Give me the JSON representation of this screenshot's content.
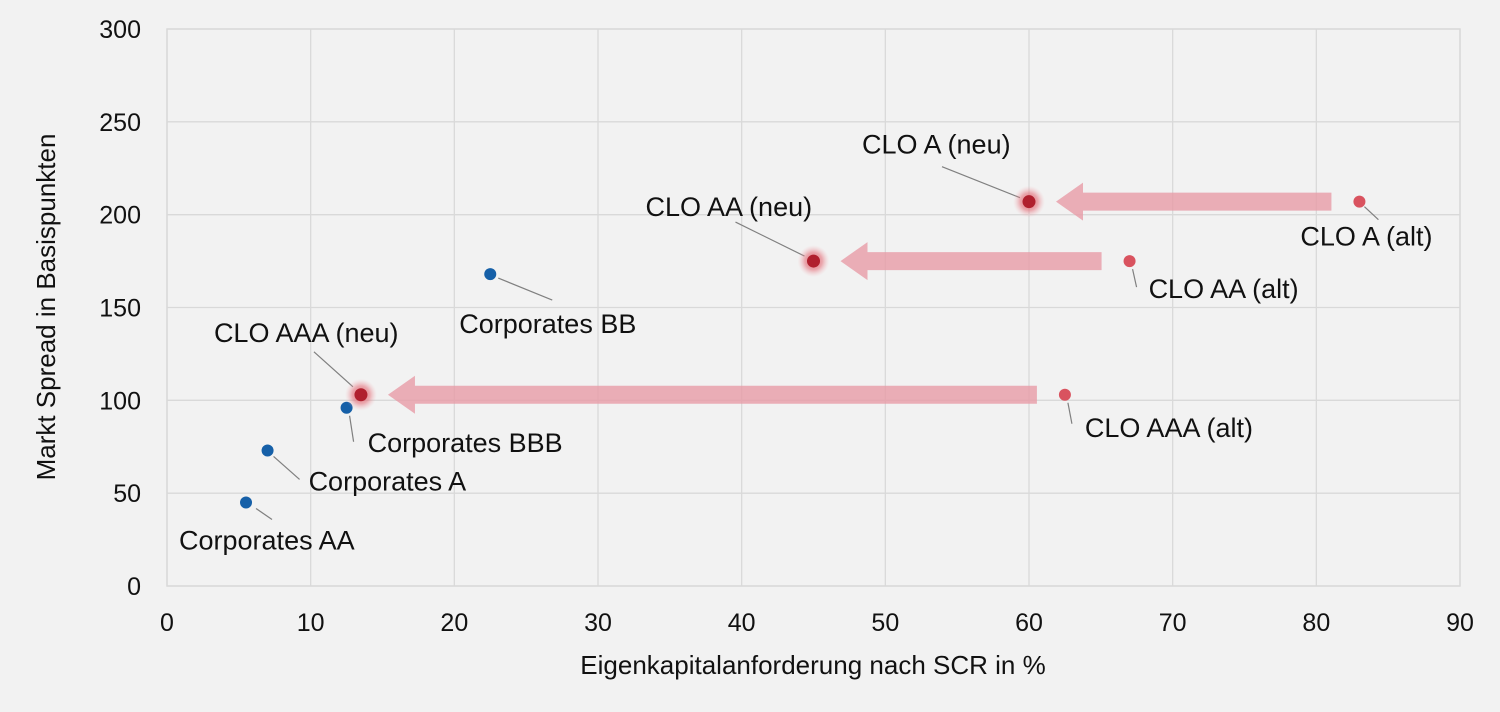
{
  "chart_data": {
    "type": "scatter",
    "title": "",
    "xlabel": "Eigenkapitalanforderung nach SCR in %",
    "ylabel": "Markt Spread in Basispunkten",
    "xlim": [
      0,
      90
    ],
    "ylim": [
      0,
      300
    ],
    "x_ticks": [
      "0",
      "10",
      "20",
      "30",
      "40",
      "50",
      "60",
      "70",
      "80",
      "90"
    ],
    "y_ticks": [
      "0",
      "50",
      "100",
      "150",
      "200",
      "250",
      "300"
    ],
    "grid": true,
    "legend": "none",
    "colors": {
      "corporates": "#1660a8",
      "clo_alt": "#d9535f",
      "clo_neu": "#b0202e",
      "arrow": "#e89aa5",
      "grid": "#d9d9d9"
    },
    "series": [
      {
        "group": "corporates",
        "points": [
          {
            "label": "Corporates AA",
            "x": 5.5,
            "y": 45
          },
          {
            "label": "Corporates A",
            "x": 7.0,
            "y": 73
          },
          {
            "label": "Corporates BBB",
            "x": 12.5,
            "y": 96
          },
          {
            "label": "Corporates BB",
            "x": 22.5,
            "y": 168
          }
        ]
      },
      {
        "group": "clo_alt",
        "points": [
          {
            "label": "CLO AAA (alt)",
            "x": 62.5,
            "y": 103
          },
          {
            "label": "CLO AA (alt)",
            "x": 67.0,
            "y": 175
          },
          {
            "label": "CLO A (alt)",
            "x": 83.0,
            "y": 207
          }
        ]
      },
      {
        "group": "clo_neu",
        "points": [
          {
            "label": "CLO AAA (neu)",
            "x": 13.5,
            "y": 103
          },
          {
            "label": "CLO AA (neu)",
            "x": 45.0,
            "y": 175
          },
          {
            "label": "CLO A (neu)",
            "x": 60.0,
            "y": 207
          }
        ]
      }
    ],
    "arrows": [
      {
        "from": "CLO AAA (alt)",
        "to": "CLO AAA (neu)",
        "y": 103
      },
      {
        "from": "CLO AA (alt)",
        "to": "CLO AA (neu)",
        "y": 175
      },
      {
        "from": "CLO A (alt)",
        "to": "CLO A (neu)",
        "y": 207
      }
    ]
  }
}
